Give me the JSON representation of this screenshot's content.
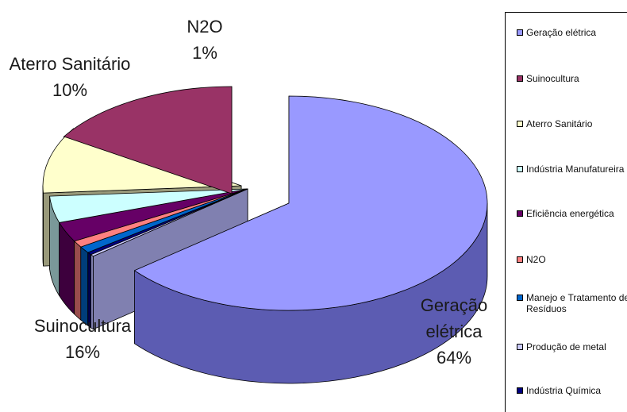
{
  "chart_data": {
    "type": "pie",
    "slices": [
      {
        "name": "Geração elétrica",
        "value": 64,
        "color": "#9999ff",
        "side": "#5c5cb2"
      },
      {
        "name": "Produção de metal",
        "value": 0.3,
        "color": "#ccccff",
        "side": "#8080b0"
      },
      {
        "name": "Indústria Química",
        "value": 0.4,
        "color": "#000080",
        "side": "#00004d"
      },
      {
        "name": "Manejo e Tratamento de Resíduos",
        "value": 1,
        "color": "#0066cc",
        "side": "#003d7a"
      },
      {
        "name": "N2O",
        "value": 1,
        "color": "#ff8080",
        "side": "#994d4d"
      },
      {
        "name": "Eficiência energética",
        "value": 3,
        "color": "#660066",
        "side": "#3d003d"
      },
      {
        "name": "Indústria Manufatureira",
        "value": 4,
        "color": "#ccffff",
        "side": "#7a9999"
      },
      {
        "name": "Aterro Sanitário",
        "value": 10,
        "color": "#ffffcc",
        "side": "#99997a"
      },
      {
        "name": "Suinocultura",
        "value": 16,
        "color": "#993366",
        "side": "#5c1f3d"
      }
    ],
    "data_labels": [
      {
        "name": "Geração elétrica",
        "lines": [
          "Geração",
          "elétrica",
          "64%"
        ]
      },
      {
        "name": "Suinocultura",
        "lines": [
          "Suinocultura",
          "16%"
        ]
      },
      {
        "name": "Aterro Sanitário",
        "lines": [
          "Aterro Sanitário",
          "10%"
        ]
      },
      {
        "name": "N2O",
        "lines": [
          "N2O",
          "1%"
        ]
      }
    ],
    "legend": {
      "placement": "right",
      "entries": [
        {
          "label": "Geração elétrica",
          "color": "#9999ff"
        },
        {
          "label": "Suinocultura",
          "color": "#993366"
        },
        {
          "label": "Aterro Sanitário",
          "color": "#ffffcc"
        },
        {
          "label": "Indústria Manufatureira",
          "color": "#ccffff"
        },
        {
          "label": "Eficiência energética",
          "color": "#660066"
        },
        {
          "label": "N2O",
          "color": "#ff8080"
        },
        {
          "label": "Manejo e Tratamento de Resíduos",
          "color": "#0066cc"
        },
        {
          "label": "Produção de metal",
          "color": "#ccccff"
        },
        {
          "label": "Indústria Química",
          "color": "#000080"
        }
      ]
    }
  }
}
